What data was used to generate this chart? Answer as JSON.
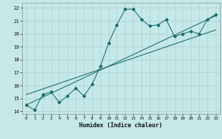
{
  "title": "",
  "xlabel": "Humidex (Indice chaleur)",
  "bg_color": "#c5e8e8",
  "line_color": "#1a6b6b",
  "grid_color": "#afd4d4",
  "x_values": [
    0,
    1,
    2,
    3,
    4,
    5,
    6,
    7,
    8,
    9,
    10,
    11,
    12,
    13,
    14,
    15,
    16,
    17,
    18,
    19,
    20,
    21,
    22,
    23
  ],
  "y_main": [
    14.5,
    14.1,
    15.3,
    15.5,
    14.7,
    15.2,
    15.8,
    15.2,
    16.1,
    17.5,
    19.3,
    20.7,
    21.9,
    21.9,
    21.1,
    20.6,
    20.7,
    21.1,
    19.8,
    20.0,
    20.2,
    20.0,
    21.1,
    21.5
  ],
  "ylim": [
    13.8,
    22.4
  ],
  "xlim": [
    -0.5,
    23.5
  ],
  "yticks": [
    14,
    15,
    16,
    17,
    18,
    19,
    20,
    21,
    22
  ],
  "xticks": [
    0,
    1,
    2,
    3,
    4,
    5,
    6,
    7,
    8,
    9,
    10,
    11,
    12,
    13,
    14,
    15,
    16,
    17,
    18,
    19,
    20,
    21,
    22,
    23
  ],
  "trend1_x": [
    0,
    23
  ],
  "trend1_y": [
    14.5,
    21.4
  ],
  "trend2_x": [
    0,
    23
  ],
  "trend2_y": [
    15.3,
    20.3
  ]
}
